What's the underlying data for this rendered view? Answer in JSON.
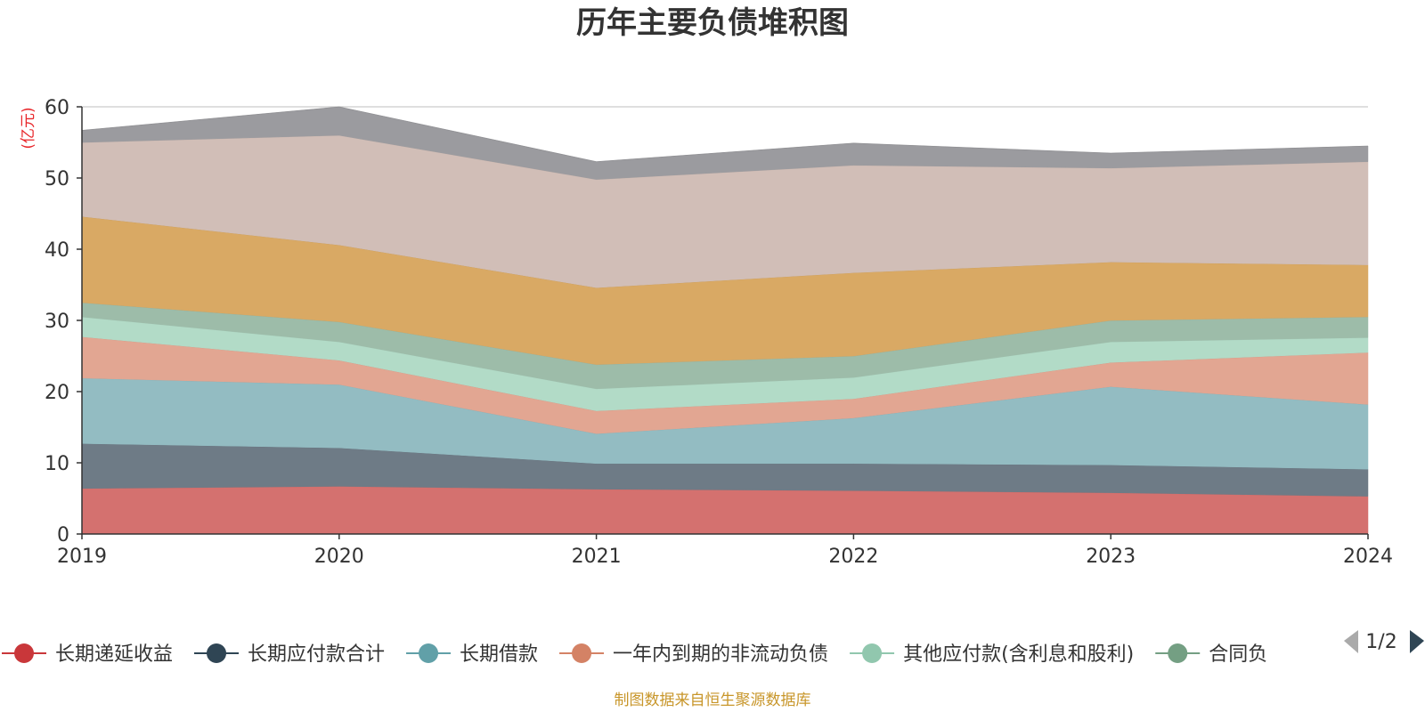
{
  "chart_data": {
    "type": "area",
    "stacked": true,
    "title": "历年主要负债堆积图",
    "unit_label": "(亿元)",
    "x": [
      "2019",
      "2020",
      "2021",
      "2022",
      "2023",
      "2024"
    ],
    "ylim": [
      0,
      60
    ],
    "yticks": [
      0,
      10,
      20,
      30,
      40,
      50,
      60
    ],
    "grid": true,
    "series": [
      {
        "name": "长期递延收益",
        "color": "#d4716f",
        "values": [
          6.4,
          6.7,
          6.3,
          6.1,
          5.8,
          5.3
        ]
      },
      {
        "name": "长期应付款合计",
        "color": "#6e7b86",
        "values": [
          6.3,
          5.4,
          3.6,
          3.8,
          3.9,
          3.8
        ]
      },
      {
        "name": "长期借款",
        "color": "#93bcc2",
        "values": [
          9.2,
          8.9,
          4.2,
          6.4,
          11.0,
          9.1
        ]
      },
      {
        "name": "一年内到期的非流动负债",
        "color": "#e2a692",
        "values": [
          5.8,
          3.4,
          3.2,
          2.7,
          3.4,
          7.3
        ]
      },
      {
        "name": "其他应付款(含利息和股利)",
        "color": "#b2dbc7",
        "values": [
          2.8,
          2.6,
          3.1,
          3.0,
          2.9,
          2.1
        ]
      },
      {
        "name": "合同负债",
        "color": "#9dbca9",
        "values": [
          2.0,
          2.8,
          3.4,
          3.0,
          3.0,
          2.9
        ]
      },
      {
        "name": "",
        "color": "#d9a964",
        "values": [
          12.1,
          10.8,
          10.8,
          11.7,
          8.2,
          7.3
        ]
      },
      {
        "name": "",
        "color": "#d1beb7",
        "values": [
          10.4,
          15.4,
          15.2,
          15.1,
          13.2,
          14.5
        ]
      },
      {
        "name": "",
        "color": "#9b9b9f",
        "values": [
          1.7,
          4.0,
          2.5,
          3.1,
          2.1,
          2.2
        ]
      }
    ]
  },
  "legend": {
    "items": [
      {
        "label": "长期递延收益",
        "color": "#c9373a"
      },
      {
        "label": "长期应付款合计",
        "color": "#2f4554"
      },
      {
        "label": "长期借款",
        "color": "#61a0a8"
      },
      {
        "label": "一年内到期的非流动负债",
        "color": "#d48265"
      },
      {
        "label": "其他应付款(含利息和股利)",
        "color": "#91c7ae"
      },
      {
        "label": "合同负",
        "color": "#749f83"
      }
    ],
    "page": "1/2"
  },
  "source_note": "制图数据来自恒生聚源数据库"
}
